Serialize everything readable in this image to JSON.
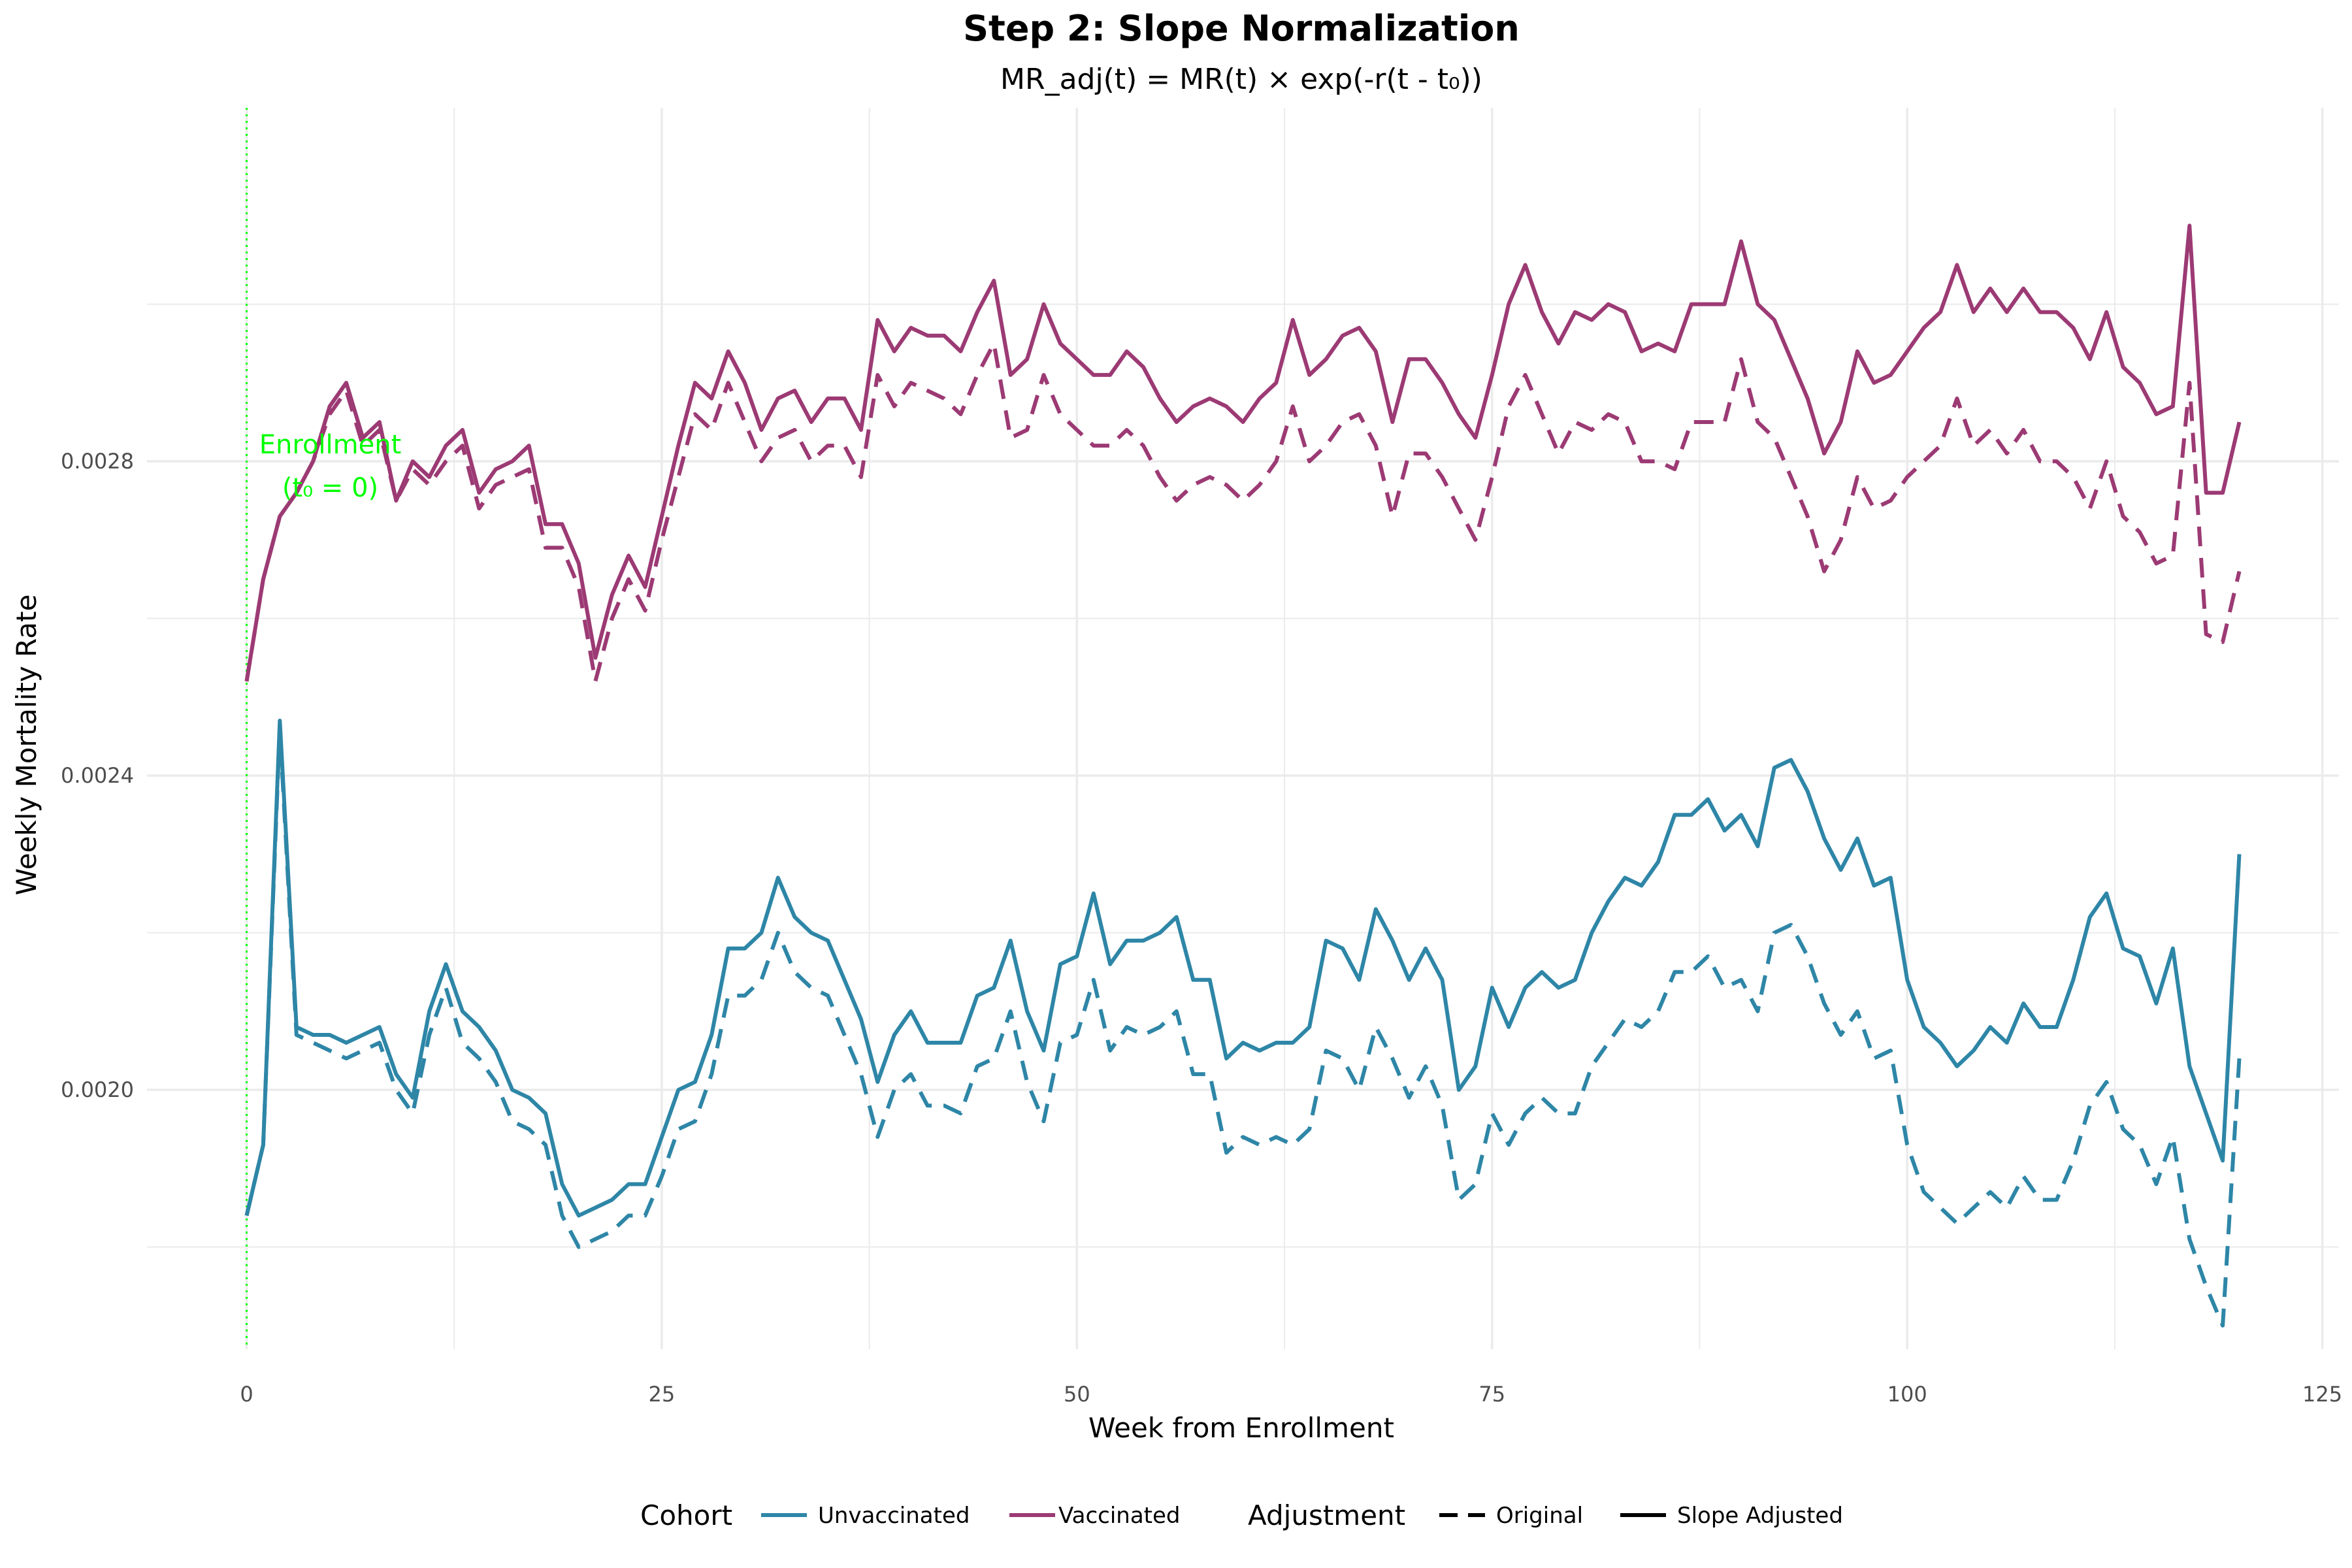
{
  "chart_data": {
    "type": "line",
    "title": "Step 2: Slope Normalization",
    "subtitle": "MR_adj(t) = MR(t) × exp(-r(t - t₀))",
    "xlabel": "Week from Enrollment",
    "ylabel": "Weekly Mortality Rate",
    "xlim": [
      -6,
      126
    ],
    "ylim": [
      0.00167,
      0.00325
    ],
    "x_ticks": [
      0,
      25,
      50,
      75,
      100,
      125
    ],
    "x_tick_labels": [
      "0",
      "25",
      "50",
      "75",
      "100",
      "125"
    ],
    "y_ticks": [
      0.002,
      0.0024,
      0.0028
    ],
    "y_tick_labels": [
      "0.0020",
      "0.0024",
      "0.0028"
    ],
    "grid": true,
    "legend_position": "bottom",
    "annotation": {
      "x": 0,
      "line1": "Enrollment",
      "line2": "(t₀ = 0)",
      "color": "#00ff00"
    },
    "colors": {
      "Unvaccinated": "#2e86a7",
      "Vaccinated": "#9c3a74",
      "enrollment_line": "#00ff00",
      "grid": "#ebebeb"
    },
    "legend": {
      "cohort_title": "Cohort",
      "cohort_items": [
        "Unvaccinated",
        "Vaccinated"
      ],
      "adjustment_title": "Adjustment",
      "adjustment_items": [
        "Original",
        "Slope Adjusted"
      ]
    },
    "x": [
      0,
      1,
      2,
      3,
      4,
      5,
      6,
      7,
      8,
      9,
      10,
      11,
      12,
      13,
      14,
      15,
      16,
      17,
      18,
      19,
      20,
      21,
      22,
      23,
      24,
      25,
      26,
      27,
      28,
      29,
      30,
      31,
      32,
      33,
      34,
      35,
      36,
      37,
      38,
      39,
      40,
      41,
      42,
      43,
      44,
      45,
      46,
      47,
      48,
      49,
      50,
      51,
      52,
      53,
      54,
      55,
      56,
      57,
      58,
      59,
      60,
      61,
      62,
      63,
      64,
      65,
      66,
      67,
      68,
      69,
      70,
      71,
      72,
      73,
      74,
      75,
      76,
      77,
      78,
      79,
      80,
      81,
      82,
      83,
      84,
      85,
      86,
      87,
      88,
      89,
      90,
      91,
      92,
      93,
      94,
      95,
      96,
      97,
      98,
      99,
      100,
      101,
      102,
      103,
      104,
      105,
      106,
      107,
      108,
      109,
      110,
      111,
      112,
      113,
      114,
      115,
      116,
      117,
      118,
      119,
      120
    ],
    "series": [
      {
        "name": "Vaccinated",
        "cohort": "Vaccinated",
        "adjustment": "Slope Adjusted",
        "values": [
          0.00252,
          0.00265,
          0.00273,
          0.00276,
          0.0028,
          0.00287,
          0.0029,
          0.00283,
          0.00285,
          0.00275,
          0.0028,
          0.00278,
          0.00282,
          0.00284,
          0.00276,
          0.00279,
          0.0028,
          0.00282,
          0.00272,
          0.00272,
          0.00267,
          0.00255,
          0.00263,
          0.00268,
          0.00264,
          0.00273,
          0.00282,
          0.0029,
          0.00288,
          0.00294,
          0.0029,
          0.00284,
          0.00288,
          0.00289,
          0.00285,
          0.00288,
          0.00288,
          0.00284,
          0.00298,
          0.00294,
          0.00297,
          0.00296,
          0.00296,
          0.00294,
          0.00299,
          0.00303,
          0.00291,
          0.00293,
          0.003,
          0.00295,
          0.00293,
          0.00291,
          0.00291,
          0.00294,
          0.00292,
          0.00288,
          0.00285,
          0.00287,
          0.00288,
          0.00287,
          0.00285,
          0.00288,
          0.0029,
          0.00298,
          0.00291,
          0.00293,
          0.00296,
          0.00297,
          0.00294,
          0.00285,
          0.00293,
          0.00293,
          0.0029,
          0.00286,
          0.00283,
          0.00291,
          0.003,
          0.00305,
          0.00299,
          0.00295,
          0.00299,
          0.00298,
          0.003,
          0.00299,
          0.00294,
          0.00295,
          0.00294,
          0.003,
          0.003,
          0.003,
          0.00308,
          0.003,
          0.00298,
          0.00293,
          0.00288,
          0.00281,
          0.00285,
          0.00294,
          0.0029,
          0.00291,
          0.00294,
          0.00297,
          0.00299,
          0.00305,
          0.00299,
          0.00302,
          0.00299,
          0.00302,
          0.00299,
          0.00299,
          0.00297,
          0.00293,
          0.00299,
          0.00292,
          0.0029,
          0.00286,
          0.00287,
          0.0031,
          0.00276,
          0.00276,
          0.00285
        ]
      },
      {
        "name": "Vaccinated",
        "cohort": "Vaccinated",
        "adjustment": "Original",
        "values": [
          0.00252,
          0.00265,
          0.00273,
          0.00276,
          0.0028,
          0.00286,
          0.00289,
          0.00282,
          0.00284,
          0.00275,
          0.00279,
          0.00277,
          0.0028,
          0.00282,
          0.00274,
          0.00277,
          0.00278,
          0.00279,
          0.00269,
          0.00269,
          0.00264,
          0.00252,
          0.0026,
          0.00265,
          0.00261,
          0.0027,
          0.00278,
          0.00286,
          0.00284,
          0.0029,
          0.00285,
          0.0028,
          0.00283,
          0.00284,
          0.0028,
          0.00282,
          0.00282,
          0.00278,
          0.00291,
          0.00287,
          0.0029,
          0.00289,
          0.00288,
          0.00286,
          0.00291,
          0.00295,
          0.00283,
          0.00284,
          0.00291,
          0.00286,
          0.00284,
          0.00282,
          0.00282,
          0.00284,
          0.00282,
          0.00278,
          0.00275,
          0.00277,
          0.00278,
          0.00277,
          0.00275,
          0.00277,
          0.0028,
          0.00287,
          0.0028,
          0.00282,
          0.00285,
          0.00286,
          0.00282,
          0.00273,
          0.00281,
          0.00281,
          0.00278,
          0.00274,
          0.0027,
          0.00278,
          0.00287,
          0.00291,
          0.00286,
          0.00281,
          0.00285,
          0.00284,
          0.00286,
          0.00285,
          0.0028,
          0.0028,
          0.00279,
          0.00285,
          0.00285,
          0.00285,
          0.00293,
          0.00285,
          0.00283,
          0.00278,
          0.00273,
          0.00266,
          0.0027,
          0.00278,
          0.00274,
          0.00275,
          0.00278,
          0.0028,
          0.00282,
          0.00288,
          0.00282,
          0.00284,
          0.00281,
          0.00284,
          0.0028,
          0.0028,
          0.00278,
          0.00274,
          0.0028,
          0.00273,
          0.00271,
          0.00267,
          0.00268,
          0.0029,
          0.00258,
          0.00257,
          0.00266
        ]
      },
      {
        "name": "Unvaccinated",
        "cohort": "Unvaccinated",
        "adjustment": "Slope Adjusted",
        "values": [
          0.00184,
          0.00193,
          0.00247,
          0.00208,
          0.00207,
          0.00207,
          0.00206,
          0.00207,
          0.00208,
          0.00202,
          0.00199,
          0.0021,
          0.00216,
          0.0021,
          0.00208,
          0.00205,
          0.002,
          0.00199,
          0.00197,
          0.00188,
          0.00184,
          0.00185,
          0.00186,
          0.00188,
          0.00188,
          0.00194,
          0.002,
          0.00201,
          0.00207,
          0.00218,
          0.00218,
          0.0022,
          0.00227,
          0.00222,
          0.0022,
          0.00219,
          0.00214,
          0.00209,
          0.00201,
          0.00207,
          0.0021,
          0.00206,
          0.00206,
          0.00206,
          0.00212,
          0.00213,
          0.00219,
          0.0021,
          0.00205,
          0.00216,
          0.00217,
          0.00225,
          0.00216,
          0.00219,
          0.00219,
          0.0022,
          0.00222,
          0.00214,
          0.00214,
          0.00204,
          0.00206,
          0.00205,
          0.00206,
          0.00206,
          0.00208,
          0.00219,
          0.00218,
          0.00214,
          0.00223,
          0.00219,
          0.00214,
          0.00218,
          0.00214,
          0.002,
          0.00203,
          0.00213,
          0.00208,
          0.00213,
          0.00215,
          0.00213,
          0.00214,
          0.0022,
          0.00224,
          0.00227,
          0.00226,
          0.00229,
          0.00235,
          0.00235,
          0.00237,
          0.00233,
          0.00235,
          0.00231,
          0.00241,
          0.00242,
          0.00238,
          0.00232,
          0.00228,
          0.00232,
          0.00226,
          0.00227,
          0.00214,
          0.00208,
          0.00206,
          0.00203,
          0.00205,
          0.00208,
          0.00206,
          0.00211,
          0.00208,
          0.00208,
          0.00214,
          0.00222,
          0.00225,
          0.00218,
          0.00217,
          0.00211,
          0.00218,
          0.00203,
          0.00197,
          0.00191,
          0.0023
        ]
      },
      {
        "name": "Unvaccinated",
        "cohort": "Unvaccinated",
        "adjustment": "Original",
        "values": [
          0.00184,
          0.00193,
          0.00246,
          0.00207,
          0.00206,
          0.00205,
          0.00204,
          0.00205,
          0.00206,
          0.002,
          0.00197,
          0.00207,
          0.00213,
          0.00206,
          0.00204,
          0.00201,
          0.00196,
          0.00195,
          0.00193,
          0.00184,
          0.0018,
          0.00181,
          0.00182,
          0.00184,
          0.00184,
          0.00189,
          0.00195,
          0.00196,
          0.00202,
          0.00212,
          0.00212,
          0.00214,
          0.0022,
          0.00215,
          0.00213,
          0.00212,
          0.00207,
          0.00202,
          0.00194,
          0.002,
          0.00202,
          0.00198,
          0.00198,
          0.00197,
          0.00203,
          0.00204,
          0.0021,
          0.00201,
          0.00196,
          0.00206,
          0.00207,
          0.00214,
          0.00205,
          0.00208,
          0.00207,
          0.00208,
          0.0021,
          0.00202,
          0.00202,
          0.00192,
          0.00194,
          0.00193,
          0.00194,
          0.00193,
          0.00195,
          0.00205,
          0.00204,
          0.002,
          0.00208,
          0.00204,
          0.00199,
          0.00203,
          0.00198,
          0.00186,
          0.00188,
          0.00197,
          0.00193,
          0.00197,
          0.00199,
          0.00197,
          0.00197,
          0.00203,
          0.00206,
          0.00209,
          0.00208,
          0.0021,
          0.00215,
          0.00215,
          0.00217,
          0.00213,
          0.00214,
          0.0021,
          0.0022,
          0.00221,
          0.00217,
          0.00211,
          0.00207,
          0.0021,
          0.00204,
          0.00205,
          0.00193,
          0.00187,
          0.00185,
          0.00183,
          0.00185,
          0.00187,
          0.00185,
          0.00189,
          0.00186,
          0.00186,
          0.00191,
          0.00198,
          0.00201,
          0.00195,
          0.00193,
          0.00188,
          0.00194,
          0.00181,
          0.00175,
          0.0017,
          0.00204
        ]
      }
    ]
  }
}
